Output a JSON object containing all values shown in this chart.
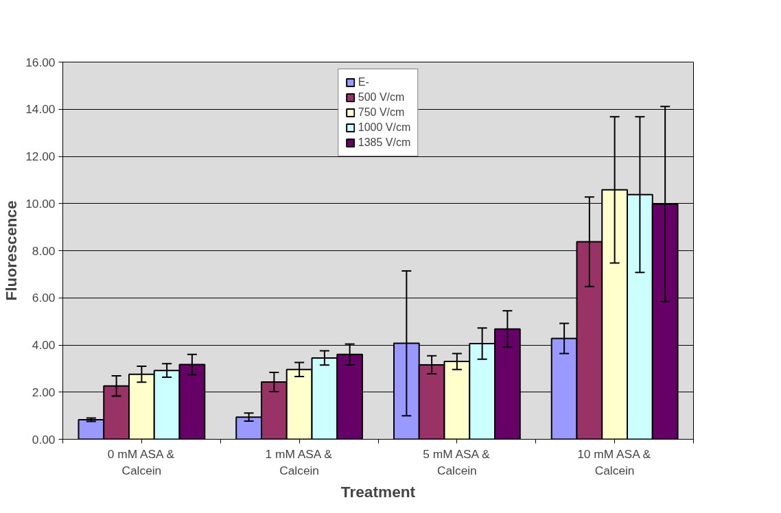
{
  "chart_data": {
    "type": "bar",
    "xlabel": "Treatment",
    "ylabel": "Fluorescence",
    "categories": [
      "0 mM ASA & Calcein",
      "1 mM ASA & Calcein",
      "5 mM ASA & Calcein",
      "10 mM ASA & Calcein"
    ],
    "series": [
      {
        "name": "E-",
        "color": "#9999ff",
        "values": [
          0.83,
          0.94,
          4.07,
          4.28
        ],
        "errors": [
          0.07,
          0.17,
          3.07,
          0.64
        ]
      },
      {
        "name": "500 V/cm",
        "color": "#993366",
        "values": [
          2.26,
          2.43,
          3.16,
          8.38
        ],
        "errors": [
          0.43,
          0.41,
          0.38,
          1.9
        ]
      },
      {
        "name": "750 V/cm",
        "color": "#ffffcc",
        "values": [
          2.76,
          2.96,
          3.3,
          10.58
        ],
        "errors": [
          0.34,
          0.3,
          0.34,
          3.1
        ]
      },
      {
        "name": "1000 V/cm",
        "color": "#ccffff",
        "values": [
          2.92,
          3.45,
          4.06,
          10.38
        ],
        "errors": [
          0.29,
          0.3,
          0.66,
          3.3
        ]
      },
      {
        "name": "1385 V/cm",
        "color": "#660066",
        "values": [
          3.17,
          3.6,
          4.68,
          9.98
        ],
        "errors": [
          0.43,
          0.44,
          0.77,
          4.14
        ]
      }
    ],
    "ylim": [
      0,
      16
    ],
    "yticks": [
      {
        "value": 0,
        "label": "0.00"
      },
      {
        "value": 2,
        "label": "2.00"
      },
      {
        "value": 4,
        "label": "4.00"
      },
      {
        "value": 6,
        "label": "6.00"
      },
      {
        "value": 8,
        "label": "8.00"
      },
      {
        "value": 10,
        "label": "10.00"
      },
      {
        "value": 12,
        "label": "12.00"
      },
      {
        "value": 14,
        "label": "14.00"
      },
      {
        "value": 16,
        "label": "16.00"
      }
    ],
    "grid": "y",
    "legend": "top"
  }
}
